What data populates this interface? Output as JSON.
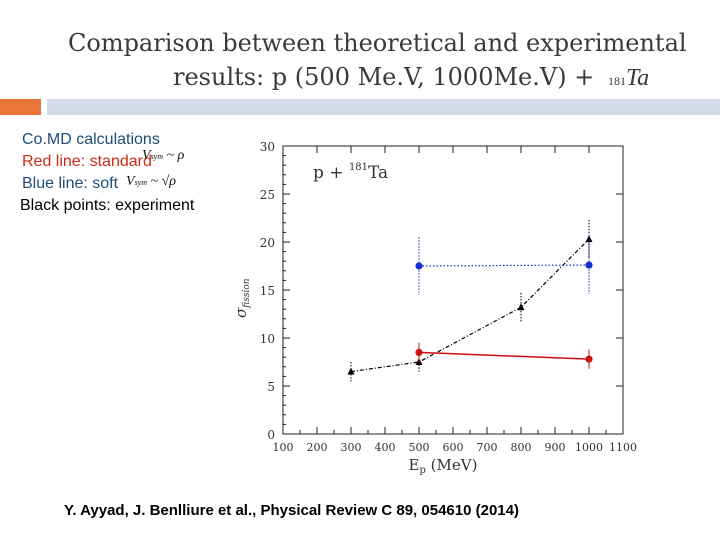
{
  "title": {
    "line1": "Comparison between theoretical and experimental",
    "line2": "results: p (500 Me.V, 1000Me.V) +",
    "isotope_mass": "181",
    "isotope_symbol": "Ta"
  },
  "legend": {
    "comd": "Co.MD calculations",
    "red": "Red line: standard",
    "red_formula_v": "V",
    "red_formula_sub": "sym",
    "red_formula_rest": "~ ρ",
    "blue": "Blue line: soft",
    "blue_formula_v": "V",
    "blue_formula_sub": "sym",
    "blue_formula_rest": "~ √ρ",
    "black": "Black points: experiment"
  },
  "colors": {
    "accent_orange": "#e8763b",
    "accent_blue_bar": "#d3dde8",
    "red_series": "#cc1111",
    "blue_series": "#1530d0",
    "black_series": "#000000"
  },
  "chart_data": {
    "type": "line",
    "title": "p + 181Ta",
    "inset_label": "p + ",
    "inset_mass": "181",
    "inset_symbol": "Ta",
    "xlabel": "E",
    "xlabel_sub": "p",
    "xlabel_unit": " (MeV)",
    "ylabel": "σ",
    "ylabel_sub": "fission",
    "xlim": [
      100,
      1100
    ],
    "ylim": [
      0,
      30
    ],
    "xticks": [
      100,
      200,
      300,
      400,
      500,
      600,
      700,
      800,
      900,
      1000,
      1100
    ],
    "yticks": [
      0,
      5,
      10,
      15,
      20,
      25,
      30
    ],
    "series": [
      {
        "name": "experiment",
        "color": "#000000",
        "style": "dashdot",
        "marker": "triangle",
        "x": [
          300,
          500,
          800,
          1000
        ],
        "y": [
          6.5,
          7.5,
          13.2,
          20.3
        ],
        "err": [
          1.0,
          1.0,
          1.5,
          2.0
        ]
      },
      {
        "name": "standard",
        "color": "#cc1111",
        "style": "solid",
        "marker": "circle",
        "x": [
          500,
          1000
        ],
        "y": [
          8.5,
          7.8
        ],
        "err": [
          1.0,
          1.0
        ]
      },
      {
        "name": "soft",
        "color": "#1530d0",
        "style": "dotted",
        "marker": "circle",
        "x": [
          500,
          1000
        ],
        "y": [
          17.5,
          17.6
        ],
        "err": [
          3.0,
          3.0
        ]
      }
    ]
  },
  "reference": "Y. Ayyad, J. Benlliure et al., Physical Review C 89, 054610 (2014)"
}
